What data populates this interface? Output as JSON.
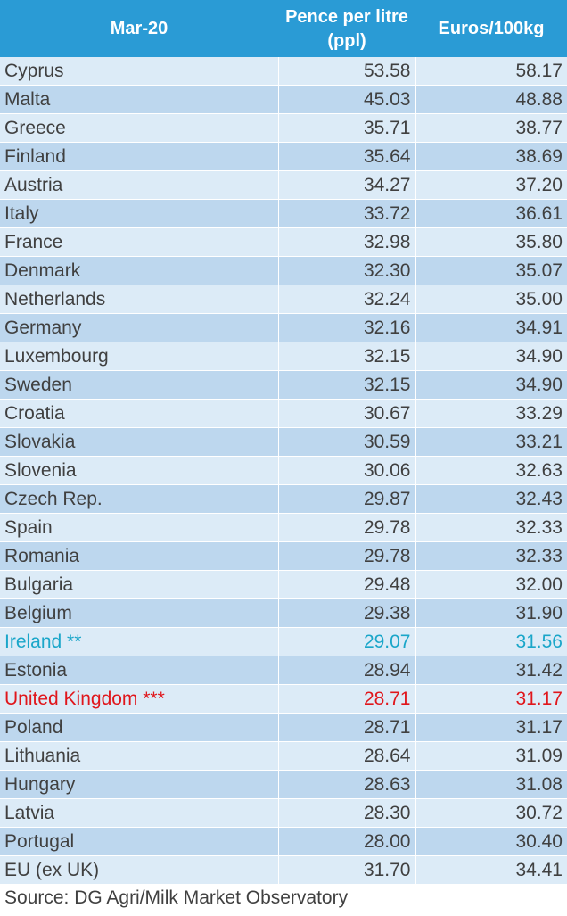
{
  "table": {
    "headers": [
      "Mar-20",
      "Pence per litre (ppl)",
      "Euros/100kg"
    ],
    "rows": [
      {
        "country": "Cyprus",
        "ppl": "53.58",
        "eur": "58.17",
        "highlight": ""
      },
      {
        "country": "Malta",
        "ppl": "45.03",
        "eur": "48.88",
        "highlight": ""
      },
      {
        "country": "Greece",
        "ppl": "35.71",
        "eur": "38.77",
        "highlight": ""
      },
      {
        "country": "Finland",
        "ppl": "35.64",
        "eur": "38.69",
        "highlight": ""
      },
      {
        "country": "Austria",
        "ppl": "34.27",
        "eur": "37.20",
        "highlight": ""
      },
      {
        "country": "Italy",
        "ppl": "33.72",
        "eur": "36.61",
        "highlight": ""
      },
      {
        "country": "France",
        "ppl": "32.98",
        "eur": "35.80",
        "highlight": ""
      },
      {
        "country": "Denmark",
        "ppl": "32.30",
        "eur": "35.07",
        "highlight": ""
      },
      {
        "country": "Netherlands",
        "ppl": "32.24",
        "eur": "35.00",
        "highlight": ""
      },
      {
        "country": "Germany",
        "ppl": "32.16",
        "eur": "34.91",
        "highlight": ""
      },
      {
        "country": "Luxembourg",
        "ppl": "32.15",
        "eur": "34.90",
        "highlight": ""
      },
      {
        "country": "Sweden",
        "ppl": "32.15",
        "eur": "34.90",
        "highlight": ""
      },
      {
        "country": "Croatia",
        "ppl": "30.67",
        "eur": "33.29",
        "highlight": ""
      },
      {
        "country": "Slovakia",
        "ppl": "30.59",
        "eur": "33.21",
        "highlight": ""
      },
      {
        "country": "Slovenia",
        "ppl": "30.06",
        "eur": "32.63",
        "highlight": ""
      },
      {
        "country": "Czech Rep.",
        "ppl": "29.87",
        "eur": "32.43",
        "highlight": ""
      },
      {
        "country": "Spain",
        "ppl": "29.78",
        "eur": "32.33",
        "highlight": ""
      },
      {
        "country": "Romania",
        "ppl": "29.78",
        "eur": "32.33",
        "highlight": ""
      },
      {
        "country": "Bulgaria",
        "ppl": "29.48",
        "eur": "32.00",
        "highlight": ""
      },
      {
        "country": "Belgium",
        "ppl": "29.38",
        "eur": "31.90",
        "highlight": ""
      },
      {
        "country": "Ireland **",
        "ppl": "29.07",
        "eur": "31.56",
        "highlight": "ireland"
      },
      {
        "country": "Estonia",
        "ppl": "28.94",
        "eur": "31.42",
        "highlight": ""
      },
      {
        "country": "United Kingdom ***",
        "ppl": "28.71",
        "eur": "31.17",
        "highlight": "uk"
      },
      {
        "country": "Poland",
        "ppl": "28.71",
        "eur": "31.17",
        "highlight": ""
      },
      {
        "country": "Lithuania",
        "ppl": "28.64",
        "eur": "31.09",
        "highlight": ""
      },
      {
        "country": "Hungary",
        "ppl": "28.63",
        "eur": "31.08",
        "highlight": ""
      },
      {
        "country": "Latvia",
        "ppl": "28.30",
        "eur": "30.72",
        "highlight": ""
      },
      {
        "country": "Portugal",
        "ppl": "28.00",
        "eur": "30.40",
        "highlight": ""
      },
      {
        "country": "EU (ex UK)",
        "ppl": "31.70",
        "eur": "34.41",
        "highlight": ""
      }
    ]
  },
  "colors": {
    "header_bg": "#2a9bd5",
    "row_light": "#dcebf7",
    "row_dark": "#bdd7ee",
    "ireland_text": "#1aa6c9",
    "uk_text": "#e0161b"
  },
  "source": "Source: DG Agri/Milk Market Observatory"
}
